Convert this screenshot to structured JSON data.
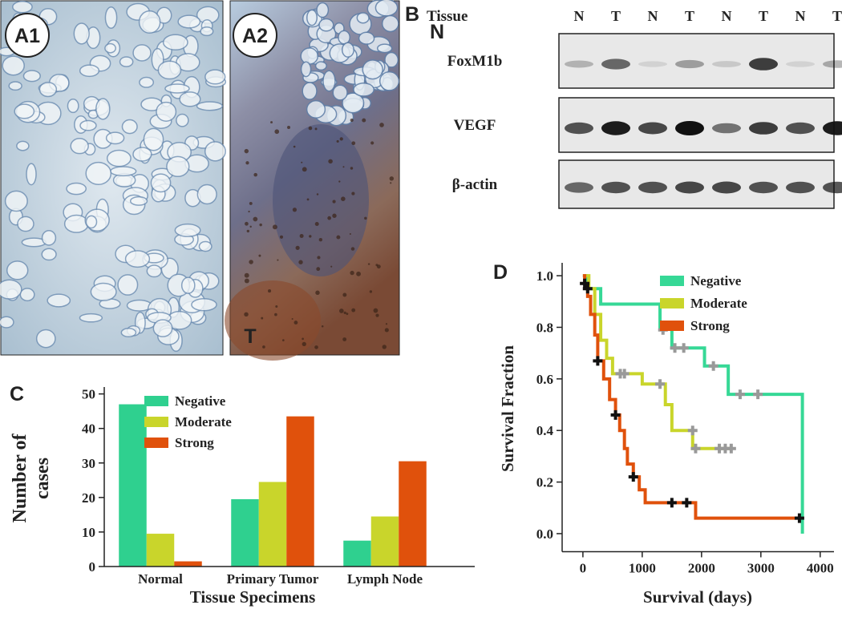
{
  "panels": {
    "a1": "A1",
    "a2": "A2",
    "n": "N",
    "t": "T",
    "b": "B",
    "c": "C",
    "d": "D"
  },
  "blot": {
    "header": "Tissue",
    "lanes": [
      "N",
      "T",
      "N",
      "T",
      "N",
      "T",
      "N",
      "T"
    ],
    "rows": [
      "FoxM1b",
      "VEGF",
      "β-actin"
    ]
  },
  "chart_data": [
    {
      "type": "bar",
      "categories": [
        "Normal",
        "Primary Tumor",
        "Lymph Node"
      ],
      "series": [
        {
          "name": "Negative",
          "color": "#2fd08f",
          "values": [
            47,
            19.5,
            7.5
          ]
        },
        {
          "name": "Moderate",
          "color": "#c9d52b",
          "values": [
            9.5,
            24.5,
            14.5
          ]
        },
        {
          "name": "Strong",
          "color": "#e0510c",
          "values": [
            1.5,
            43.5,
            30.5
          ]
        }
      ],
      "ylim": [
        0,
        52
      ],
      "yticks": [
        0,
        10,
        20,
        30,
        40,
        50
      ],
      "xlabel": "Tissue Specimens",
      "ylabel": [
        "Number of",
        "cases"
      ],
      "legend": "upper left"
    },
    {
      "type": "line",
      "step": true,
      "series": [
        {
          "name": "Negative",
          "color": "#36d896",
          "x": [
            0,
            60,
            300,
            1300,
            1500,
            2050,
            2450,
            3700,
            3700
          ],
          "values": [
            1.0,
            0.95,
            0.89,
            0.8,
            0.72,
            0.65,
            0.54,
            0.54,
            0.0
          ],
          "censored": {
            "x": [
              1350,
              1550,
              1700,
              2200,
              2650,
              2950
            ],
            "y": [
              0.79,
              0.72,
              0.72,
              0.65,
              0.54,
              0.54
            ]
          }
        },
        {
          "name": "Moderate",
          "color": "#c9d52b",
          "x": [
            0,
            100,
            200,
            300,
            400,
            500,
            1000,
            1390,
            1500,
            1850,
            2500
          ],
          "values": [
            1.0,
            0.95,
            0.85,
            0.75,
            0.68,
            0.62,
            0.58,
            0.5,
            0.4,
            0.33,
            0.33
          ],
          "censored": {
            "x": [
              630,
              700,
              1300,
              1850,
              1900,
              2300,
              2400,
              2500
            ],
            "y": [
              0.62,
              0.62,
              0.58,
              0.4,
              0.33,
              0.33,
              0.33,
              0.33
            ]
          }
        },
        {
          "name": "Strong",
          "color": "#e0510c",
          "x": [
            0,
            30,
            80,
            130,
            200,
            250,
            350,
            450,
            550,
            620,
            700,
            750,
            850,
            950,
            1050,
            1900,
            3650
          ],
          "values": [
            1.0,
            0.97,
            0.92,
            0.85,
            0.77,
            0.67,
            0.6,
            0.52,
            0.46,
            0.4,
            0.33,
            0.27,
            0.22,
            0.17,
            0.12,
            0.06,
            0.06
          ],
          "censored": {
            "x": [
              30,
              80,
              250,
              550,
              850,
              1500,
              1750,
              3650
            ],
            "y": [
              0.97,
              0.95,
              0.67,
              0.46,
              0.22,
              0.12,
              0.12,
              0.06
            ]
          }
        }
      ],
      "xlim": [
        -350,
        4300
      ],
      "ylim": [
        -0.07,
        1.05
      ],
      "xticks": [
        0,
        1000,
        2000,
        3000,
        4000
      ],
      "yticks": [
        {
          "value": 0,
          "label": "0.0"
        },
        0.2,
        0.4,
        0.6,
        0.8,
        {
          "value": 1,
          "label": "1.0"
        }
      ],
      "xlabel": "Survival (days)",
      "ylabel": "Survival Fraction",
      "legend": "upper right"
    }
  ]
}
